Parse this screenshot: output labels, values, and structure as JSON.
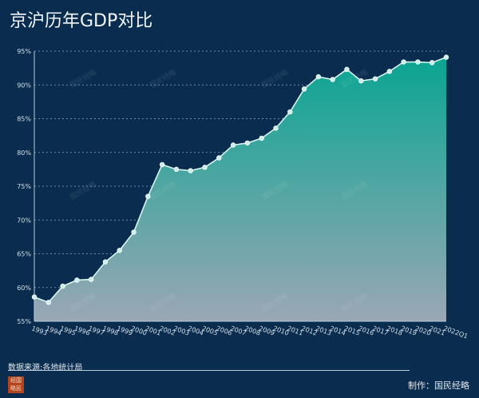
{
  "title": "京沪历年GDP对比",
  "source": "数据来源:各地统计局",
  "credit": "制作：国民经略",
  "seal_text": "国民经略",
  "watermark": "国民经略",
  "colors": {
    "background": "#0a2d4f",
    "line": "#d8f5ef",
    "fill_top": "#0aa592",
    "fill_bottom": "#9aa7b5",
    "grid": "#8fa6bd"
  },
  "chart_data": {
    "type": "area",
    "title": "京沪历年GDP对比",
    "xlabel": "",
    "ylabel": "",
    "ylim": [
      55,
      95
    ],
    "yticks": [
      "55%",
      "60%",
      "65%",
      "70%",
      "75%",
      "80%",
      "85%",
      "90%",
      "95%"
    ],
    "grid": true,
    "categories": [
      "1993",
      "1994",
      "1995",
      "1996",
      "1997",
      "1998",
      "1999",
      "2000",
      "2001",
      "2002",
      "2003",
      "2004",
      "2005",
      "2006",
      "2007",
      "2008",
      "2009",
      "2010",
      "2011",
      "2012",
      "2013",
      "2014",
      "2015",
      "2016",
      "2017",
      "2018",
      "2019",
      "2020",
      "2021",
      "2022Q1"
    ],
    "values": [
      58.6,
      57.8,
      60.2,
      61.1,
      61.2,
      63.8,
      65.5,
      68.2,
      73.5,
      78.2,
      77.5,
      77.3,
      77.8,
      79.2,
      81.1,
      81.4,
      82.1,
      83.6,
      86.0,
      89.4,
      91.2,
      90.8,
      92.3,
      90.6,
      90.9,
      92.0,
      93.4,
      93.4,
      93.3,
      94.1
    ]
  }
}
